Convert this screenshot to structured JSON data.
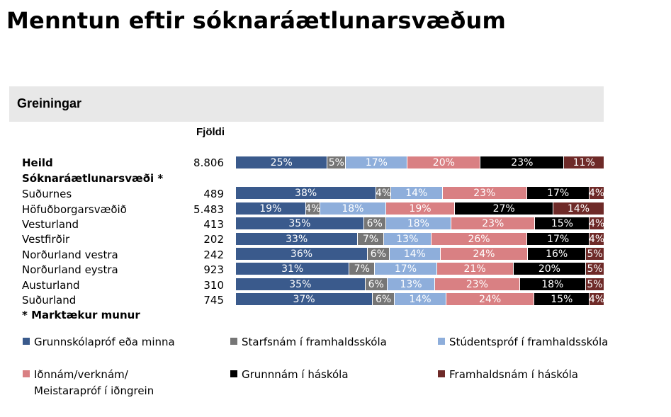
{
  "title": "Menntun eftir sóknaráætlunarsvæðum",
  "panel_title": "Greiningar",
  "count_header": "Fjöldi",
  "note": "* Marktækur munur",
  "colors": {
    "grunnskola": "#3a5a8c",
    "starfsnam": "#767676",
    "studentsprof": "#8eaedb",
    "idnnam": "#d98083",
    "grunnnam_haskola": "#000000",
    "framhaldsnam_haskola": "#6e2a28",
    "panel_bg": "#e8e8e8"
  },
  "chart_data": {
    "type": "bar",
    "orientation": "horizontal",
    "stacked": true,
    "unit": "%",
    "categories": [
      "Heild",
      "Suðurnes",
      "Höfuðborgarsvæðið",
      "Vesturland",
      "Vestfirðir",
      "Norðurland vestra",
      "Norðurland eystra",
      "Austurland",
      "Suðurland"
    ],
    "group_label": "Sóknaráætlunarsvæði *",
    "counts": [
      "8.806",
      "489",
      "5.483",
      "413",
      "202",
      "242",
      "923",
      "310",
      "745"
    ],
    "series": [
      {
        "name": "Grunnskólapróf eða minna",
        "values": [
          25,
          38,
          19,
          35,
          33,
          36,
          31,
          35,
          37
        ]
      },
      {
        "name": "Starfsnám í framhaldsskóla",
        "values": [
          5,
          4,
          4,
          6,
          7,
          6,
          7,
          6,
          6
        ]
      },
      {
        "name": "Stúdentspróf í framhaldsskóla",
        "values": [
          17,
          14,
          18,
          18,
          13,
          14,
          17,
          13,
          14
        ]
      },
      {
        "name": "Iðnnám/verknám/ Meistarapróf í iðngrein",
        "values": [
          20,
          23,
          19,
          23,
          26,
          24,
          21,
          23,
          24
        ]
      },
      {
        "name": "Grunnnám í háskóla",
        "values": [
          23,
          17,
          27,
          15,
          17,
          16,
          20,
          18,
          15
        ]
      },
      {
        "name": "Framhaldsnám í háskóla",
        "values": [
          11,
          4,
          14,
          4,
          4,
          5,
          5,
          5,
          4
        ]
      }
    ],
    "legend": {
      "position": "bottom",
      "items": [
        {
          "label": "Grunnskólapróf eða minna",
          "color": "#3a5a8c"
        },
        {
          "label": "Starfsnám í framhaldsskóla",
          "color": "#767676"
        },
        {
          "label": "Stúdentspróf í framhaldsskóla",
          "color": "#8eaedb"
        },
        {
          "label": "Iðnnám/verknám/",
          "label2": "Meistarapróf í iðngrein",
          "color": "#d98083"
        },
        {
          "label": "Grunnnám í háskóla",
          "color": "#000000"
        },
        {
          "label": "Framhaldsnám í háskóla",
          "color": "#6e2a28"
        }
      ]
    }
  }
}
